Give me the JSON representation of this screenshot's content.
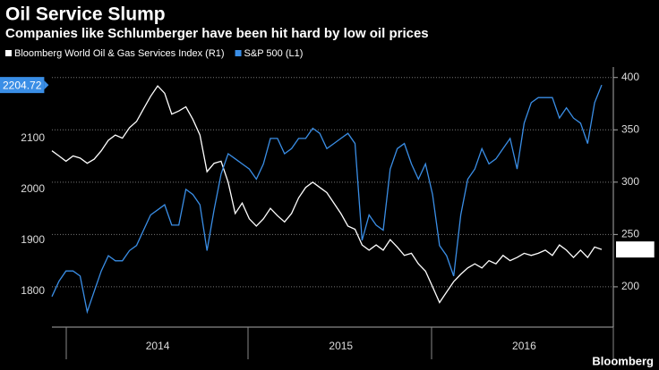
{
  "chart_data": {
    "type": "line",
    "title": "Oil Service Slump",
    "subtitle": "Companies like Schlumberger have been hit hard by low oil prices",
    "source": "Bloomberg",
    "categories": [
      null,
      null,
      null,
      null,
      null,
      null,
      null,
      null,
      null,
      null,
      null,
      null,
      null,
      null,
      null,
      "2014",
      null,
      null,
      null,
      null,
      null,
      null,
      null,
      null,
      null,
      null,
      null,
      null,
      null,
      null,
      null,
      null,
      null,
      null,
      null,
      null,
      null,
      null,
      null,
      null,
      null,
      "2015",
      null,
      null,
      null,
      null,
      null,
      null,
      null,
      null,
      null,
      null,
      null,
      null,
      null,
      null,
      null,
      null,
      null,
      null,
      null,
      null,
      null,
      null,
      null,
      null,
      null,
      "2016",
      null,
      null,
      null,
      null,
      null,
      null,
      null,
      null,
      null,
      null,
      null
    ],
    "series": [
      {
        "name": "Bloomberg World Oil & Gas Services Index (R1)",
        "color": "#ffffff",
        "axis": "y2",
        "values": [
          330,
          325,
          320,
          325,
          323,
          318,
          322,
          330,
          340,
          345,
          342,
          352,
          358,
          370,
          382,
          392,
          385,
          365,
          368,
          372,
          360,
          345,
          310,
          318,
          320,
          300,
          270,
          280,
          265,
          258,
          265,
          275,
          268,
          262,
          270,
          285,
          295,
          300,
          295,
          290,
          280,
          270,
          258,
          255,
          240,
          235,
          240,
          235,
          245,
          238,
          230,
          232,
          222,
          215,
          200,
          185,
          195,
          205,
          212,
          218,
          222,
          218,
          225,
          222,
          230,
          225,
          228,
          232,
          230,
          232,
          235,
          230,
          240,
          235,
          228,
          235,
          228,
          238,
          235.67
        ]
      },
      {
        "name": "S&P 500 (L1)",
        "color": "#3a8ee6",
        "values": [
          1790,
          1820,
          1840,
          1840,
          1830,
          1760,
          1800,
          1840,
          1870,
          1860,
          1860,
          1880,
          1890,
          1920,
          1950,
          1960,
          1970,
          1930,
          1930,
          2000,
          1990,
          1970,
          1880,
          1960,
          2030,
          2070,
          2060,
          2050,
          2040,
          2020,
          2050,
          2100,
          2100,
          2070,
          2080,
          2100,
          2100,
          2120,
          2110,
          2080,
          2090,
          2100,
          2110,
          2090,
          1900,
          1950,
          1930,
          1920,
          2040,
          2080,
          2090,
          2050,
          2020,
          2050,
          1990,
          1890,
          1870,
          1830,
          1950,
          2020,
          2040,
          2080,
          2050,
          2060,
          2080,
          2100,
          2040,
          2130,
          2170,
          2180,
          2180,
          2180,
          2140,
          2160,
          2140,
          2130,
          2090,
          2170,
          2204.72
        ]
      }
    ],
    "ylim": [
      1730,
      2240
    ],
    "yticks": [
      1800,
      1900,
      2000,
      2100
    ],
    "y2lim": [
      161.5,
      410
    ],
    "y2ticks": [
      200,
      250,
      300,
      350,
      400
    ],
    "grid": true
  }
}
